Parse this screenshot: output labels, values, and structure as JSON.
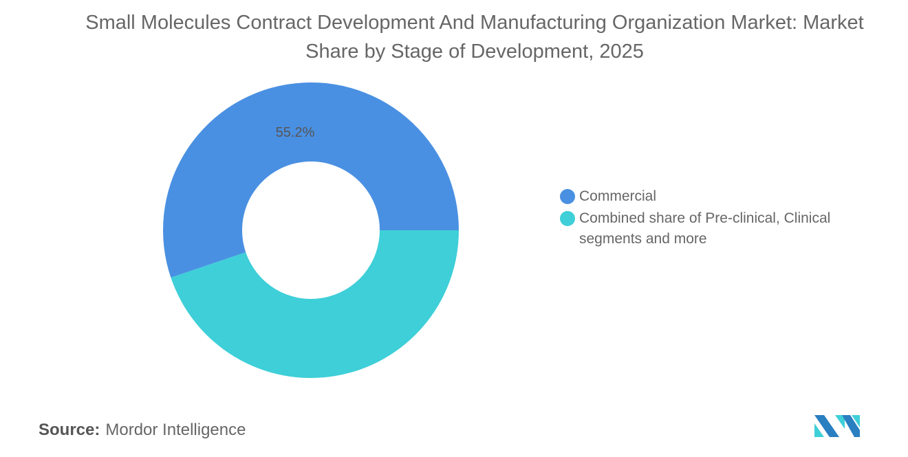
{
  "chart_data": {
    "type": "pie",
    "subtype": "donut",
    "title": "Small Molecules Contract Development And Manufacturing Organization Market: Market Share by Stage of Development, 2025",
    "categories": [
      "Commercial",
      "Combined share of Pre-clinical, Clinical segments and more"
    ],
    "values": [
      55.2,
      44.8
    ],
    "colors": [
      "#4a90e2",
      "#3ecfd8"
    ],
    "data_labels": [
      "55.2%",
      ""
    ],
    "legend_position": "right",
    "unit": "%"
  },
  "source": {
    "label": "Source:",
    "text": "Mordor Intelligence"
  },
  "logo": {
    "name": "Mordor Intelligence logo",
    "colors": [
      "#1f77b4",
      "#3ecfd8"
    ]
  }
}
